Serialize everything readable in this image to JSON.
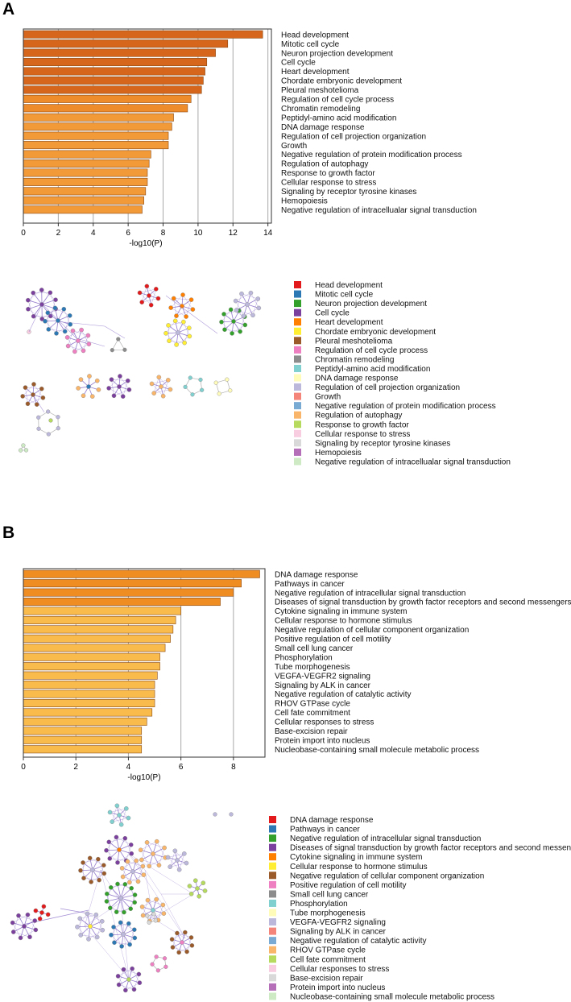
{
  "panels": {
    "a": {
      "letter": "A"
    },
    "b": {
      "letter": "B"
    }
  },
  "chart_data": [
    {
      "type": "bar",
      "orientation": "horizontal",
      "panel": "A",
      "categories": [
        "Head development",
        "Mitotic cell cycle",
        "Neuron projection development",
        "Cell cycle",
        "Heart development",
        "Chordate embryonic development",
        "Pleural meshotelioma",
        "Regulation of cell cycle process",
        "Chromatin remodeling",
        "Peptidyl-amino acid modification",
        "DNA damage response",
        "Regulation of cell projection organization",
        "Growth",
        "Negative regulation of protein modification process",
        "Regulation of autophagy",
        "Response to growth factor",
        "Cellular response to stress",
        "Signaling by receptor tyrosine kinases",
        "Hemopoiesis",
        "Negative regulation of intracellualar signal transduction"
      ],
      "values": [
        13.7,
        11.7,
        11.0,
        10.5,
        10.4,
        10.3,
        10.2,
        9.6,
        9.4,
        8.6,
        8.5,
        8.3,
        8.3,
        7.3,
        7.2,
        7.1,
        7.1,
        7.0,
        6.9,
        6.8
      ],
      "bar_colors": [
        "#d6661c",
        "#d6661c",
        "#d6661c",
        "#d6661c",
        "#d6661c",
        "#d6661c",
        "#d6661c",
        "#ee8b2a",
        "#ee8b2a",
        "#f39a38",
        "#f39a38",
        "#f39a38",
        "#f39a38",
        "#f39a38",
        "#f39a38",
        "#f39a38",
        "#f39a38",
        "#f39a38",
        "#f39a38",
        "#f39a38"
      ],
      "xlabel": "-log10(P)",
      "xticks": [
        "0",
        "2",
        "4",
        "6",
        "8",
        "10",
        "12",
        "14"
      ],
      "xlim": [
        0,
        14.2
      ],
      "grid": "vertical"
    },
    {
      "type": "bar",
      "orientation": "horizontal",
      "panel": "B",
      "categories": [
        "DNA damage response",
        "Pathways in cancer",
        "Negative regulation of intracellular signal transduction",
        "Diseases of signal transduction by growth factor receptors and second messengers",
        "Cytokine signaling in immune system",
        "Cellular response to hormone stimulus",
        "Negative regulation of  cellular component organization",
        "Positive regulation of cell motility",
        "Small cell lung cancer",
        "Phosphorylation",
        "Tube morphogenesis",
        "VEGFA-VEGFR2 signaling",
        "Signaling by ALK in cancer",
        "Negative regulation of catalytic activity",
        "RHOV GTPase cycle",
        "Cell fate commitment",
        "Cellular responses to stress",
        "Base-excision repair",
        "Protein import into nucleus",
        "Nucleobase-containing small molecule metabolic process"
      ],
      "values": [
        9.0,
        8.3,
        8.0,
        7.5,
        6.0,
        5.8,
        5.7,
        5.6,
        5.4,
        5.2,
        5.2,
        5.1,
        5.0,
        5.0,
        5.0,
        4.9,
        4.7,
        4.5,
        4.5,
        4.5
      ],
      "bar_colors": [
        "#ef8c22",
        "#ef8c22",
        "#ef8c22",
        "#ef8c22",
        "#f9bc4c",
        "#f9bc4c",
        "#f9bc4c",
        "#f9bc4c",
        "#f9bc4c",
        "#f9bc4c",
        "#f9bc4c",
        "#f9bc4c",
        "#f9bc4c",
        "#f9bc4c",
        "#f9bc4c",
        "#f9bc4c",
        "#f9bc4c",
        "#f9bc4c",
        "#f9bc4c",
        "#f9bc4c"
      ],
      "xlabel": "-log10(P)",
      "xticks": [
        "0",
        "2",
        "4",
        "6",
        "8"
      ],
      "xlim": [
        0,
        9.2
      ],
      "grid": "vertical"
    }
  ],
  "legends": {
    "a": {
      "items": [
        "Head development",
        "Mitotic cell cycle",
        "Neuron projection development",
        "Cell cycle",
        "Heart development",
        "Chordate embryonic development",
        "Pleural meshotelioma",
        "Regulation of cell cycle process",
        "Chromatin remodeling",
        "Peptidyl-amino acid modification",
        "DNA damage response",
        "Regulation of cell projection organization",
        "Growth",
        "Negative regulation of protein modification process",
        "Regulation of autophagy",
        "Response to growth factor",
        "Cellular response to stress",
        "Signaling by receptor tyrosine kinases",
        "Hemopoiesis",
        "Negative regulation of intracellualar signal transduction"
      ]
    },
    "b": {
      "items": [
        "DNA damage response",
        "Pathways in cancer",
        "Negative regulation of intracellular signal transduction",
        "Diseases of signal transduction by growth factor receptors and second messengers",
        "Cytokine signaling in immune system",
        "Cellular response to hormone stimulus",
        "Negative regulation of  cellular component organization",
        "Positive regulation of cell motility",
        "Small cell lung cancer",
        "Phosphorylation",
        "Tube morphogenesis",
        "VEGFA-VEGFR2 signaling",
        "Signaling by ALK in cancer",
        "Negative regulation of catalytic activity",
        "RHOV GTPase cycle",
        "Cell fate commitment",
        "Cellular responses to stress",
        "Base-excision repair",
        "Protein import into nucleus",
        "Nucleobase-containing small molecule metabolic process"
      ]
    },
    "colors": [
      "#e31a1c",
      "#2c78b5",
      "#33a02c",
      "#7b3f9d",
      "#ff7f00",
      "#ffee33",
      "#9b5a2a",
      "#ee7fc0",
      "#8c8c8c",
      "#7fd0cf",
      "#fffbb8",
      "#bcb8dc",
      "#f4857b",
      "#79aad4",
      "#f9b56a",
      "#b5da5e",
      "#f8cde0",
      "#d9d9d9",
      "#b46fb8",
      "#cdeac5"
    ]
  },
  "network_colors": {
    "edge": "#7a5cc2",
    "node_stroke": "#888888"
  }
}
